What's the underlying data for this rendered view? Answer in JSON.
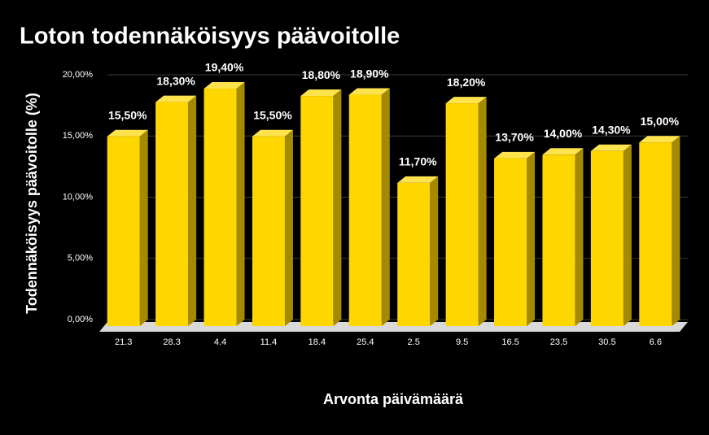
{
  "chart_data": {
    "type": "bar3d",
    "title": "Loton todennäköisyys päävoitolle",
    "x_label": "Arvonta päivämäärä",
    "y_label": "Todennäköisyys päävoitolle (%)",
    "categories": [
      "21.3",
      "28.3",
      "4.4",
      "11.4",
      "18.4",
      "25.4",
      "2.5",
      "9.5",
      "16.5",
      "23.5",
      "30.5",
      "6.6"
    ],
    "values": [
      15.5,
      18.3,
      19.4,
      15.5,
      18.8,
      18.9,
      11.7,
      18.2,
      13.7,
      14.0,
      14.3,
      15.0
    ],
    "value_labels": [
      "15,50%",
      "18,30%",
      "19,40%",
      "15,50%",
      "18,80%",
      "18,90%",
      "11,70%",
      "18,20%",
      "13,70%",
      "14,00%",
      "14,30%",
      "15,00%"
    ],
    "color": "#ffd700",
    "ylim": [
      0,
      20
    ],
    "yticks": [
      {
        "value": 0,
        "label": "0,00%"
      },
      {
        "value": 5,
        "label": "5,00%"
      },
      {
        "value": 10,
        "label": "10,00%"
      },
      {
        "value": 15,
        "label": "15,00%"
      },
      {
        "value": 20,
        "label": "20,00%"
      }
    ],
    "grid": true
  }
}
